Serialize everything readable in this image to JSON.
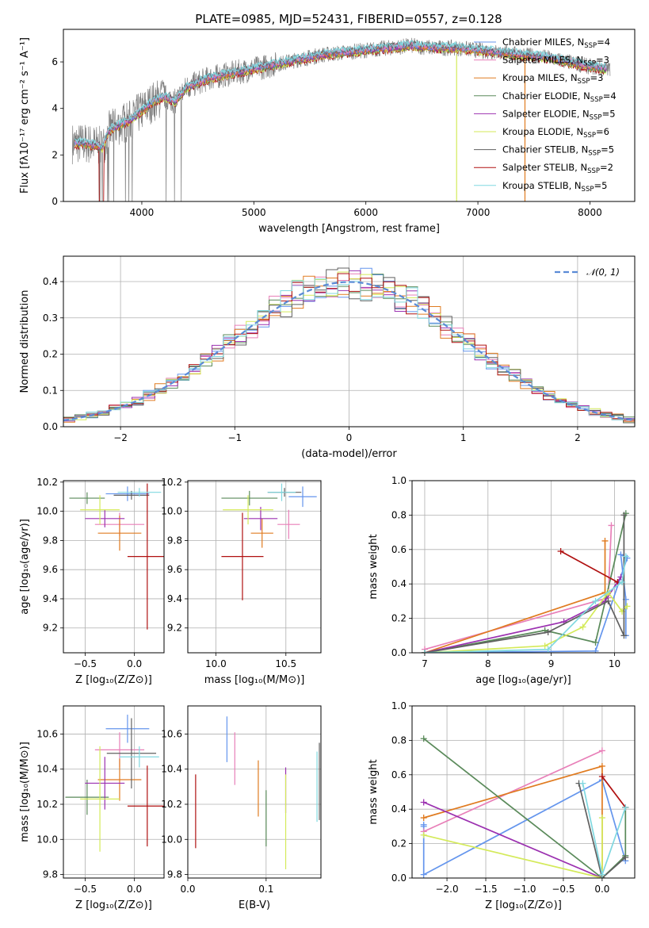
{
  "figure": {
    "title": "PLATE=0985, MJD=52431, FIBERID=0557, z=0.128"
  },
  "colors": {
    "chabrier_miles": "#6495ed",
    "salpeter_miles": "#e87fb8",
    "kroupa_miles": "#e07b20",
    "chabrier_elodie": "#5a8a5a",
    "salpeter_elodie": "#9b30b0",
    "kroupa_elodie": "#d4ea5a",
    "chabrier_stelib": "#606060",
    "salpeter_stelib": "#b01010",
    "kroupa_stelib": "#80d8e0",
    "observed": "#808080",
    "normal_curve": "#5b8bd6"
  },
  "chart_data": [
    {
      "id": "spectrum",
      "type": "line",
      "title": "PLATE=0985, MJD=52431, FIBERID=0557, z=0.128",
      "xlabel": "wavelength [Angstrom, rest frame]",
      "ylabel": "Flux [fλ10⁻¹⁷ erg cm⁻² s⁻¹ A⁻¹]",
      "xlim": [
        3300,
        8400
      ],
      "ylim": [
        0,
        7.4
      ],
      "xticks": [
        4000,
        5000,
        6000,
        7000,
        8000
      ],
      "yticks": [
        0,
        2,
        4,
        6
      ],
      "grid": false,
      "legend_position": "top-right",
      "legend": [
        {
          "label": "Chabrier MILES, N",
          "sub": "SSP",
          "suffix": "=4",
          "color": "chabrier_miles"
        },
        {
          "label": "Salpeter MILES, N",
          "sub": "SSP",
          "suffix": "=3",
          "color": "salpeter_miles"
        },
        {
          "label": "Kroupa MILES, N",
          "sub": "SSP",
          "suffix": "=3",
          "color": "kroupa_miles"
        },
        {
          "label": "Chabrier ELODIE, N",
          "sub": "SSP",
          "suffix": "=4",
          "color": "chabrier_elodie"
        },
        {
          "label": "Salpeter ELODIE, N",
          "sub": "SSP",
          "suffix": "=5",
          "color": "salpeter_elodie"
        },
        {
          "label": "Kroupa ELODIE, N",
          "sub": "SSP",
          "suffix": "=6",
          "color": "kroupa_elodie"
        },
        {
          "label": "Chabrier STELIB, N",
          "sub": "SSP",
          "suffix": "=5",
          "color": "chabrier_stelib"
        },
        {
          "label": "Salpeter STELIB, N",
          "sub": "SSP",
          "suffix": "=2",
          "color": "salpeter_stelib"
        },
        {
          "label": "Kroupa STELIB, N",
          "sub": "SSP",
          "suffix": "=5",
          "color": "kroupa_stelib"
        }
      ],
      "continuum": {
        "x": [
          3400,
          3500,
          3600,
          3650,
          3700,
          3800,
          3900,
          4000,
          4100,
          4200,
          4300,
          4400,
          4500,
          4600,
          4800,
          5000,
          5200,
          5400,
          5600,
          5800,
          6000,
          6200,
          6400,
          6600,
          6800,
          7000,
          7200,
          7400,
          7600,
          7800,
          8000,
          8150
        ],
        "y": [
          2.5,
          2.5,
          2.4,
          2.3,
          3.0,
          3.3,
          3.5,
          3.9,
          4.3,
          4.5,
          4.3,
          4.9,
          5.1,
          5.3,
          5.5,
          5.7,
          5.9,
          6.1,
          6.3,
          6.4,
          6.5,
          6.6,
          6.7,
          6.6,
          6.6,
          6.5,
          6.4,
          6.3,
          6.2,
          6.0,
          5.8,
          5.7
        ]
      }
    },
    {
      "id": "residual-histogram",
      "type": "bar",
      "xlabel": "(data-model)/error",
      "ylabel": "Normed distribution",
      "xlim": [
        -2.5,
        2.5
      ],
      "ylim": [
        0,
        0.47
      ],
      "xticks": [
        -2,
        -1,
        0,
        1,
        2
      ],
      "yticks": [
        0.0,
        0.1,
        0.2,
        0.3,
        0.4
      ],
      "grid": true,
      "legend_position": "top-right",
      "legend": [
        {
          "label": "𝒩(0, 1)",
          "color": "normal_curve",
          "style": "dashed"
        }
      ],
      "bin_width": 0.1,
      "bin_start": -2.6
    },
    {
      "id": "age-vs-z",
      "type": "scatter",
      "xlabel": "Z [log₁₀(Z/Z⊙)]",
      "ylabel": "age  [log₁₀(age/yr)]",
      "xlim": [
        -0.72,
        0.3
      ],
      "ylim": [
        9.03,
        10.21
      ],
      "xticks": [
        -0.5,
        0.0
      ],
      "yticks": [
        9.2,
        9.4,
        9.6,
        9.8,
        10.0,
        10.2
      ],
      "grid": true,
      "points": [
        {
          "model": "chabrier_miles",
          "x": -0.07,
          "y": 10.12,
          "xerr": 0.22,
          "yerr": 0.05
        },
        {
          "model": "salpeter_miles",
          "x": -0.15,
          "y": 9.91,
          "xerr": 0.25,
          "yerr": 0.08
        },
        {
          "model": "kroupa_miles",
          "x": -0.15,
          "y": 9.85,
          "xerr": 0.22,
          "yerr": 0.12
        },
        {
          "model": "chabrier_elodie",
          "x": -0.48,
          "y": 10.09,
          "xerr": 0.18,
          "yerr": 0.04
        },
        {
          "model": "salpeter_elodie",
          "x": -0.3,
          "y": 9.95,
          "xerr": 0.2,
          "yerr": 0.06
        },
        {
          "model": "kroupa_elodie",
          "x": -0.35,
          "y": 10.01,
          "xerr": 0.2,
          "yerr": 0.1
        },
        {
          "model": "chabrier_stelib",
          "x": -0.03,
          "y": 10.11,
          "xerr": 0.18,
          "yerr": 0.03
        },
        {
          "model": "salpeter_stelib",
          "x": 0.13,
          "y": 9.69,
          "xerr": 0.2,
          "yerr": 0.5
        },
        {
          "model": "kroupa_stelib",
          "x": 0.05,
          "y": 10.13,
          "xerr": 0.22,
          "yerr": 0.03
        }
      ]
    },
    {
      "id": "age-vs-mass",
      "type": "scatter",
      "xlabel": "mass [log₁₀(M/M⊙)]",
      "ylabel": "",
      "xlim": [
        9.8,
        10.75
      ],
      "ylim": [
        9.03,
        10.21
      ],
      "xticks": [
        10.0,
        10.5
      ],
      "yticks": [
        9.2,
        9.4,
        9.6,
        9.8,
        10.0,
        10.2
      ],
      "grid": true,
      "points": [
        {
          "model": "chabrier_miles",
          "x": 10.62,
          "y": 10.1,
          "xerr": 0.1,
          "yerr": 0.07
        },
        {
          "model": "salpeter_miles",
          "x": 10.52,
          "y": 9.91,
          "xerr": 0.08,
          "yerr": 0.1
        },
        {
          "model": "kroupa_miles",
          "x": 10.33,
          "y": 9.85,
          "xerr": 0.08,
          "yerr": 0.1
        },
        {
          "model": "chabrier_elodie",
          "x": 10.24,
          "y": 10.09,
          "xerr": 0.2,
          "yerr": 0.05
        },
        {
          "model": "salpeter_elodie",
          "x": 10.32,
          "y": 9.95,
          "xerr": 0.12,
          "yerr": 0.08
        },
        {
          "model": "kroupa_elodie",
          "x": 10.23,
          "y": 10.01,
          "xerr": 0.18,
          "yerr": 0.1
        },
        {
          "model": "chabrier_stelib",
          "x": 10.49,
          "y": 10.13,
          "xerr": 0.12,
          "yerr": 0.03
        },
        {
          "model": "salpeter_stelib",
          "x": 10.19,
          "y": 9.69,
          "xerr": 0.15,
          "yerr": 0.3
        },
        {
          "model": "kroupa_stelib",
          "x": 10.47,
          "y": 10.13,
          "xerr": 0.1,
          "yerr": 0.06
        }
      ]
    },
    {
      "id": "weight-vs-age",
      "type": "line",
      "xlabel": "age  [log₁₀(age/yr)]",
      "ylabel": "mass weight",
      "xlim": [
        6.8,
        10.32
      ],
      "ylim": [
        0,
        1.0
      ],
      "xticks": [
        7,
        8,
        9,
        10
      ],
      "yticks": [
        0.0,
        0.2,
        0.4,
        0.6,
        0.8,
        1.0
      ],
      "grid": true,
      "series": [
        {
          "model": "chabrier_miles",
          "x": [
            10.18,
            10.18,
            10.1,
            10.2,
            9.7,
            7.0
          ],
          "y": [
            0.1,
            0.31,
            0.57,
            0.55,
            0.01,
            0.0
          ]
        },
        {
          "model": "salpeter_miles",
          "x": [
            9.95,
            9.9,
            7.0
          ],
          "y": [
            0.74,
            0.32,
            0.02
          ]
        },
        {
          "model": "kroupa_miles",
          "x": [
            9.85,
            9.85,
            7.0
          ],
          "y": [
            0.65,
            0.35,
            0.0
          ]
        },
        {
          "model": "chabrier_elodie",
          "x": [
            10.18,
            9.7,
            8.9,
            7.0
          ],
          "y": [
            0.81,
            0.06,
            0.13,
            0.0
          ]
        },
        {
          "model": "salpeter_elodie",
          "x": [
            10.1,
            9.85,
            9.2,
            7.0
          ],
          "y": [
            0.44,
            0.3,
            0.18,
            0.0
          ]
        },
        {
          "model": "kroupa_elodie",
          "x": [
            10.2,
            10.12,
            9.9,
            9.5,
            8.9,
            7.0
          ],
          "y": [
            0.27,
            0.24,
            0.35,
            0.15,
            0.04,
            0.0
          ]
        },
        {
          "model": "chabrier_stelib",
          "x": [
            10.15,
            10.15,
            9.9,
            8.95,
            7.0
          ],
          "y": [
            0.8,
            0.1,
            0.3,
            0.12,
            0.0
          ]
        },
        {
          "model": "salpeter_stelib",
          "x": [
            9.15,
            10.05
          ],
          "y": [
            0.59,
            0.41
          ]
        },
        {
          "model": "kroupa_stelib",
          "x": [
            10.18,
            10.12,
            9.7,
            8.95,
            7.0
          ],
          "y": [
            0.56,
            0.41,
            0.3,
            0.02,
            0.0
          ]
        }
      ]
    },
    {
      "id": "mass-vs-z",
      "type": "scatter",
      "xlabel": "Z [log₁₀(Z/Z⊙)]",
      "ylabel": "mass [log₁₀(M/M⊙)]",
      "xlim": [
        -0.72,
        0.3
      ],
      "ylim": [
        9.78,
        10.76
      ],
      "xticks": [
        -0.5,
        0.0
      ],
      "yticks": [
        9.8,
        10.0,
        10.2,
        10.4,
        10.6
      ],
      "grid": true,
      "points": [
        {
          "model": "chabrier_miles",
          "x": -0.07,
          "y": 10.63,
          "xerr": 0.22,
          "yerr": 0.08
        },
        {
          "model": "salpeter_miles",
          "x": -0.15,
          "y": 10.51,
          "xerr": 0.25,
          "yerr": 0.1
        },
        {
          "model": "kroupa_miles",
          "x": -0.15,
          "y": 10.34,
          "xerr": 0.22,
          "yerr": 0.12
        },
        {
          "model": "chabrier_elodie",
          "x": -0.48,
          "y": 10.24,
          "xerr": 0.22,
          "yerr": 0.1
        },
        {
          "model": "salpeter_elodie",
          "x": -0.3,
          "y": 10.32,
          "xerr": 0.2,
          "yerr": 0.15
        },
        {
          "model": "kroupa_elodie",
          "x": -0.35,
          "y": 10.23,
          "xerr": 0.2,
          "yerr": 0.3
        },
        {
          "model": "chabrier_stelib",
          "x": -0.03,
          "y": 10.49,
          "xerr": 0.25,
          "yerr": 0.2
        },
        {
          "model": "salpeter_stelib",
          "x": 0.13,
          "y": 10.19,
          "xerr": 0.2,
          "yerr": 0.23
        },
        {
          "model": "kroupa_stelib",
          "x": 0.05,
          "y": 10.47,
          "xerr": 0.2,
          "yerr": 0.06
        }
      ]
    },
    {
      "id": "mass-vs-ebv",
      "type": "scatter",
      "xlabel": "E(B-V)",
      "ylabel": "",
      "xlim": [
        0.0,
        0.17
      ],
      "ylim": [
        9.78,
        10.76
      ],
      "xticks": [
        0.0,
        0.1
      ],
      "yticks": [
        9.8,
        10.0,
        10.2,
        10.4,
        10.6
      ],
      "grid": true,
      "points": [
        {
          "model": "chabrier_miles",
          "x": 0.05,
          "y": 10.57,
          "xerr": 0.0,
          "yerr": 0.13
        },
        {
          "model": "salpeter_miles",
          "x": 0.06,
          "y": 10.46,
          "xerr": 0.0,
          "yerr": 0.15
        },
        {
          "model": "kroupa_miles",
          "x": 0.09,
          "y": 10.29,
          "xerr": 0.0,
          "yerr": 0.16
        },
        {
          "model": "chabrier_elodie",
          "x": 0.1,
          "y": 10.12,
          "xerr": 0.0,
          "yerr": 0.16
        },
        {
          "model": "salpeter_elodie",
          "x": 0.125,
          "y": 10.28,
          "xerr": 0.0,
          "yerr": 0.13
        },
        {
          "model": "kroupa_elodie",
          "x": 0.125,
          "y": 10.1,
          "xerr": 0.0,
          "yerr": 0.27
        },
        {
          "model": "chabrier_stelib",
          "x": 0.168,
          "y": 10.33,
          "xerr": 0.0,
          "yerr": 0.22
        },
        {
          "model": "salpeter_stelib",
          "x": 0.01,
          "y": 10.16,
          "xerr": 0.0,
          "yerr": 0.21
        },
        {
          "model": "kroupa_stelib",
          "x": 0.165,
          "y": 10.3,
          "xerr": 0.0,
          "yerr": 0.2
        }
      ]
    },
    {
      "id": "weight-vs-z",
      "type": "line",
      "xlabel": "Z [log₁₀(Z/Z⊙)]",
      "ylabel": "mass weight",
      "xlim": [
        -2.45,
        0.42
      ],
      "ylim": [
        0,
        1.0
      ],
      "xticks": [
        -2.0,
        -1.5,
        -1.0,
        -0.5,
        0.0
      ],
      "yticks": [
        0.0,
        0.2,
        0.4,
        0.6,
        0.8,
        1.0
      ],
      "grid": true,
      "series": [
        {
          "model": "chabrier_miles",
          "x": [
            -2.3,
            -2.3,
            -2.3,
            0.0,
            0.3
          ],
          "y": [
            0.31,
            0.3,
            0.02,
            0.57,
            0.1
          ]
        },
        {
          "model": "salpeter_miles",
          "x": [
            -2.3,
            0.0
          ],
          "y": [
            0.27,
            0.74
          ]
        },
        {
          "model": "kroupa_miles",
          "x": [
            -2.3,
            0.0,
            0.0
          ],
          "y": [
            0.35,
            0.65,
            0.0
          ]
        },
        {
          "model": "chabrier_elodie",
          "x": [
            -2.3,
            0.0,
            0.3,
            0.3
          ],
          "y": [
            0.81,
            0.0,
            0.13,
            0.41
          ]
        },
        {
          "model": "salpeter_elodie",
          "x": [
            -2.3,
            0.0
          ],
          "y": [
            0.44,
            0.0
          ]
        },
        {
          "model": "kroupa_elodie",
          "x": [
            -2.3,
            0.0,
            0.0
          ],
          "y": [
            0.25,
            0.0,
            0.35
          ]
        },
        {
          "model": "chabrier_stelib",
          "x": [
            -0.3,
            0.0,
            0.3
          ],
          "y": [
            0.55,
            0.0,
            0.12
          ]
        },
        {
          "model": "salpeter_stelib",
          "x": [
            0.0,
            0.3
          ],
          "y": [
            0.59,
            0.41
          ]
        },
        {
          "model": "kroupa_stelib",
          "x": [
            -0.25,
            0.0,
            0.3
          ],
          "y": [
            0.55,
            0.02,
            0.41
          ]
        }
      ]
    }
  ]
}
